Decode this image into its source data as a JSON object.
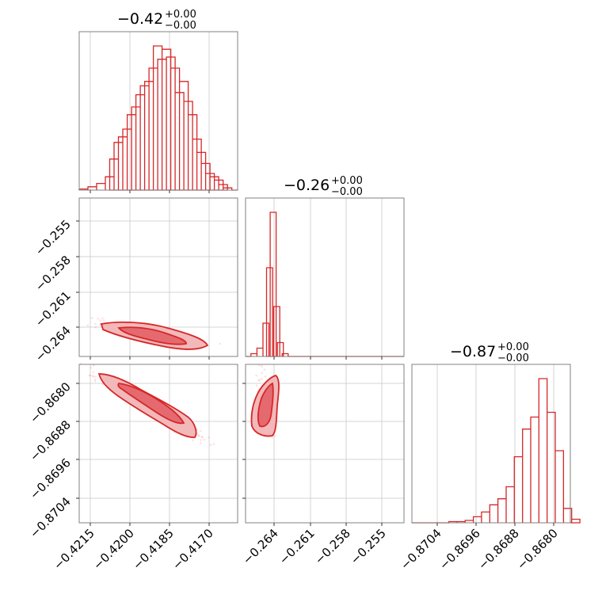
{
  "chart_data": {
    "type": "corner",
    "color": "#d62728",
    "parameters": [
      {
        "index": 0,
        "title_value": "−0.42",
        "title_plus": "+0.00",
        "title_minus": "−0.00",
        "range": [
          -0.4219,
          -0.41645
        ],
        "ticks": [
          -0.4215,
          -0.42,
          -0.4185,
          -0.417
        ],
        "tick_labels": [
          "−0.4215",
          "−0.4200",
          "−0.4185",
          "−0.4170"
        ],
        "hist": [
          [
            -0.42175,
            1
          ],
          [
            -0.42145,
            3
          ],
          [
            -0.42115,
            6
          ],
          [
            -0.42085,
            12
          ],
          [
            -0.4207,
            28
          ],
          [
            -0.42055,
            43
          ],
          [
            -0.4204,
            48
          ],
          [
            -0.42025,
            55
          ],
          [
            -0.4201,
            68
          ],
          [
            -0.41995,
            75
          ],
          [
            -0.4198,
            86
          ],
          [
            -0.41965,
            94
          ],
          [
            -0.4195,
            98
          ],
          [
            -0.41935,
            110
          ],
          [
            -0.4192,
            130
          ],
          [
            -0.41905,
            118
          ],
          [
            -0.4189,
            127
          ],
          [
            -0.41875,
            120
          ],
          [
            -0.4186,
            110
          ],
          [
            -0.41845,
            88
          ],
          [
            -0.4183,
            98
          ],
          [
            -0.41815,
            80
          ],
          [
            -0.418,
            68
          ],
          [
            -0.41785,
            46
          ],
          [
            -0.4177,
            34
          ],
          [
            -0.41755,
            24
          ],
          [
            -0.4174,
            15
          ],
          [
            -0.41725,
            12
          ],
          [
            -0.4171,
            9
          ],
          [
            -0.41695,
            5
          ],
          [
            -0.4168,
            2
          ]
        ]
      },
      {
        "index": 1,
        "title_value": "−0.26",
        "title_plus": "+0.00",
        "title_minus": "−0.00",
        "range": [
          -0.2666,
          -0.2534
        ],
        "ticks": [
          -0.264,
          -0.261,
          -0.258,
          -0.255
        ],
        "tick_labels": [
          "−0.264",
          "−0.261",
          "−0.258",
          "−0.255"
        ],
        "hist": [
          [
            -0.2659,
            1
          ],
          [
            -0.2654,
            3
          ],
          [
            -0.2649,
            12
          ],
          [
            -0.2646,
            32
          ],
          [
            -0.2643,
            52
          ],
          [
            -0.264,
            18
          ],
          [
            -0.2637,
            5
          ],
          [
            -0.2633,
            1
          ]
        ]
      },
      {
        "index": 2,
        "title_value": "−0.87",
        "title_plus": "+0.00",
        "title_minus": "−0.00",
        "range": [
          -0.87075,
          -0.86785
        ],
        "ticks": [
          -0.8704,
          -0.8696,
          -0.8688,
          -0.868
        ],
        "tick_labels": [
          "−0.8704",
          "−0.8696",
          "−0.8688",
          "−0.8680"
        ],
        "hist": [
          [
            -0.87,
            1
          ],
          [
            -0.86985,
            1
          ],
          [
            -0.8697,
            2
          ],
          [
            -0.86955,
            5
          ],
          [
            -0.8694,
            9
          ],
          [
            -0.86925,
            15
          ],
          [
            -0.8691,
            20
          ],
          [
            -0.86895,
            30
          ],
          [
            -0.8688,
            55
          ],
          [
            -0.86865,
            78
          ],
          [
            -0.8685,
            88
          ],
          [
            -0.86835,
            120
          ],
          [
            -0.8682,
            92
          ],
          [
            -0.86805,
            60
          ],
          [
            -0.8679,
            12
          ],
          [
            -0.86775,
            3
          ]
        ]
      }
    ],
    "row_tick_labels": {
      "row1": [
        "−0.255",
        "−0.258",
        "−0.261",
        "−0.264"
      ],
      "row2": [
        "−0.8680",
        "−0.8688",
        "−0.8696",
        "−0.8704"
      ]
    },
    "contour_levels": 2,
    "grid": true
  }
}
